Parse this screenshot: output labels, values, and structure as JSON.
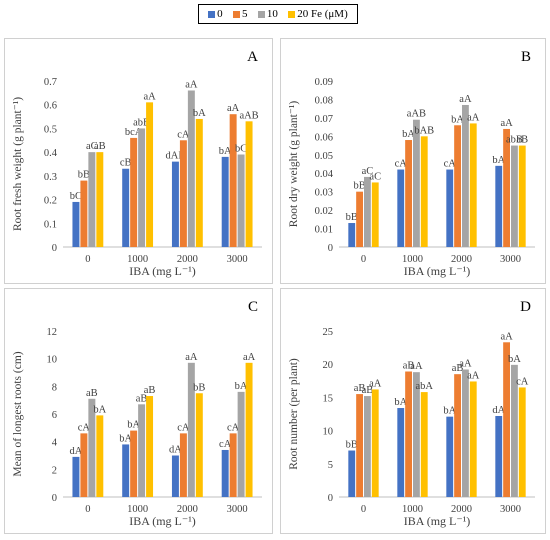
{
  "legend": [
    {
      "label": "0",
      "color": "#4472C4"
    },
    {
      "label": "5",
      "color": "#ED7D31"
    },
    {
      "label": "10",
      "color": "#A5A5A5"
    },
    {
      "label": "20 Fe (μM)",
      "color": "#FFC000"
    }
  ],
  "chart_data": [
    {
      "type": "bar",
      "panel_label": "A",
      "categories": [
        "0",
        "1000",
        "2000",
        "3000"
      ],
      "xlabel": "IBA (mg L⁻¹)",
      "ylabel": "Root fresh weight (g plant⁻¹)",
      "ylim": [
        0,
        0.7
      ],
      "yticks": [
        "0",
        "0.1",
        "0.2",
        "0.3",
        "0.4",
        "0.5",
        "0.6",
        "0.7"
      ],
      "grid": false,
      "series": [
        {
          "name": "0",
          "color": "#4472C4",
          "values": [
            0.19,
            0.33,
            0.36,
            0.38
          ],
          "labels": [
            "bC",
            "cB",
            "dAB",
            "bA"
          ]
        },
        {
          "name": "5",
          "color": "#ED7D31",
          "values": [
            0.28,
            0.46,
            0.45,
            0.56
          ],
          "labels": [
            "bB",
            "bcA",
            "cA",
            "aA"
          ]
        },
        {
          "name": "10",
          "color": "#A5A5A5",
          "values": [
            0.4,
            0.5,
            0.66,
            0.39
          ],
          "labels": [
            "aC",
            "abB",
            "aA",
            "bC"
          ]
        },
        {
          "name": "20 Fe (μM)",
          "color": "#FFC000",
          "values": [
            0.4,
            0.61,
            0.54,
            0.53
          ],
          "labels": [
            "aB",
            "aA",
            "bA",
            "aAB"
          ]
        }
      ]
    },
    {
      "type": "bar",
      "panel_label": "B",
      "categories": [
        "0",
        "1000",
        "2000",
        "3000"
      ],
      "xlabel": "IBA (mg L⁻¹)",
      "ylabel": "Root dry weight (g plant⁻¹)",
      "ylim": [
        0,
        0.09
      ],
      "yticks": [
        "0",
        "0.01",
        "0.02",
        "0.03",
        "0.04",
        "0.05",
        "0.06",
        "0.07",
        "0.08",
        "0.09"
      ],
      "grid": false,
      "series": [
        {
          "name": "0",
          "color": "#4472C4",
          "values": [
            0.013,
            0.042,
            0.042,
            0.044
          ],
          "labels": [
            "bB",
            "cA",
            "cA",
            "bA"
          ]
        },
        {
          "name": "5",
          "color": "#ED7D31",
          "values": [
            0.03,
            0.058,
            0.066,
            0.064
          ],
          "labels": [
            "bB",
            "bA",
            "bA",
            "aA"
          ]
        },
        {
          "name": "10",
          "color": "#A5A5A5",
          "values": [
            0.038,
            0.069,
            0.077,
            0.055
          ],
          "labels": [
            "aC",
            "aAB",
            "aA",
            "abB"
          ]
        },
        {
          "name": "20 Fe (μM)",
          "color": "#FFC000",
          "values": [
            0.035,
            0.06,
            0.067,
            0.055
          ],
          "labels": [
            "aC",
            "bAB",
            "aA",
            "aB"
          ]
        }
      ]
    },
    {
      "type": "bar",
      "panel_label": "C",
      "categories": [
        "0",
        "1000",
        "2000",
        "3000"
      ],
      "xlabel": "IBA (mg L⁻¹)",
      "ylabel": "Mean of longest roots (cm)",
      "ylim": [
        0,
        12
      ],
      "yticks": [
        "0",
        "2",
        "4",
        "6",
        "8",
        "10",
        "12"
      ],
      "grid": false,
      "series": [
        {
          "name": "0",
          "color": "#4472C4",
          "values": [
            2.9,
            3.8,
            3.0,
            3.4
          ],
          "labels": [
            "dA",
            "bA",
            "dA",
            "cA"
          ]
        },
        {
          "name": "5",
          "color": "#ED7D31",
          "values": [
            4.6,
            4.8,
            4.6,
            4.6
          ],
          "labels": [
            "cA",
            "bA",
            "cA",
            "cA"
          ]
        },
        {
          "name": "10",
          "color": "#A5A5A5",
          "values": [
            7.1,
            6.7,
            9.7,
            7.6
          ],
          "labels": [
            "aB",
            "aB",
            "aA",
            "bA"
          ]
        },
        {
          "name": "20 Fe (μM)",
          "color": "#FFC000",
          "values": [
            5.9,
            7.3,
            7.5,
            9.7
          ],
          "labels": [
            "bA",
            "aB",
            "bB",
            "aA"
          ]
        }
      ]
    },
    {
      "type": "bar",
      "panel_label": "D",
      "categories": [
        "0",
        "1000",
        "2000",
        "3000"
      ],
      "xlabel": "IBA (mg L⁻¹)",
      "ylabel": "Root number (per plant)",
      "ylim": [
        0,
        25
      ],
      "yticks": [
        "0",
        "5",
        "10",
        "15",
        "20",
        "25"
      ],
      "grid": false,
      "series": [
        {
          "name": "0",
          "color": "#4472C4",
          "values": [
            7.0,
            13.4,
            12.1,
            12.2
          ],
          "labels": [
            "bB",
            "bA",
            "bA",
            "dA"
          ]
        },
        {
          "name": "5",
          "color": "#ED7D31",
          "values": [
            15.5,
            18.9,
            18.5,
            23.3
          ],
          "labels": [
            "aB",
            "aB",
            "aB",
            "aA"
          ]
        },
        {
          "name": "10",
          "color": "#A5A5A5",
          "values": [
            15.2,
            18.8,
            19.2,
            19.9
          ],
          "labels": [
            "aB",
            "aA",
            "aA",
            "bA"
          ]
        },
        {
          "name": "20 Fe (μM)",
          "color": "#FFC000",
          "values": [
            16.2,
            15.8,
            17.4,
            16.5
          ],
          "labels": [
            "aA",
            "abA",
            "aA",
            "cA"
          ]
        }
      ]
    }
  ]
}
